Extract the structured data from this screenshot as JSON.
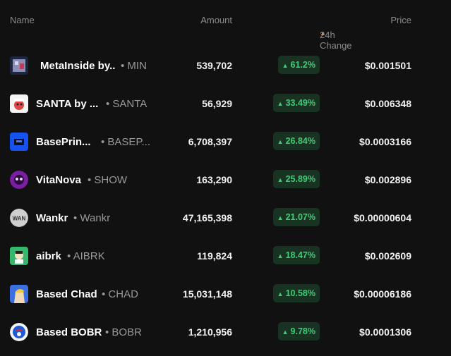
{
  "header": {
    "name": "Name",
    "amount": "Amount",
    "change": "24h Change",
    "price": "Price"
  },
  "rows": [
    {
      "name": "MetaInside by..",
      "symbol": "• MIN",
      "amount": "539,702",
      "change": "61.2%",
      "price": "$0.001501"
    },
    {
      "name": "SANTA by ...",
      "symbol": "• SANTA",
      "amount": "56,929",
      "change": "33.49%",
      "price": "$0.006348"
    },
    {
      "name": "BasePrin...",
      "symbol": "• BASEP...",
      "amount": "6,708,397",
      "change": "26.84%",
      "price": "$0.0003166"
    },
    {
      "name": "VitaNova",
      "symbol": "• SHOW",
      "amount": "163,290",
      "change": "25.89%",
      "price": "$0.002896"
    },
    {
      "name": "Wankr",
      "symbol": "• Wankr",
      "amount": "47,165,398",
      "change": "21.07%",
      "price": "$0.00000604"
    },
    {
      "name": "aibrk",
      "symbol": "• AIBRK",
      "amount": "119,824",
      "change": "18.47%",
      "price": "$0.002609"
    },
    {
      "name": "Based Chad",
      "symbol": "• CHAD",
      "amount": "15,031,148",
      "change": "10.58%",
      "price": "$0.00006186"
    },
    {
      "name": "Based BOBR",
      "symbol": "• BOBR",
      "amount": "1,210,956",
      "change": "9.78%",
      "price": "$0.0001306"
    }
  ],
  "icons": {
    "sort": "sort-arrow-icon",
    "up": "up-triangle-icon"
  },
  "colors": {
    "positive": "#3fce75",
    "positive_bg": "#183322",
    "sort_accent": "#f0893a"
  }
}
